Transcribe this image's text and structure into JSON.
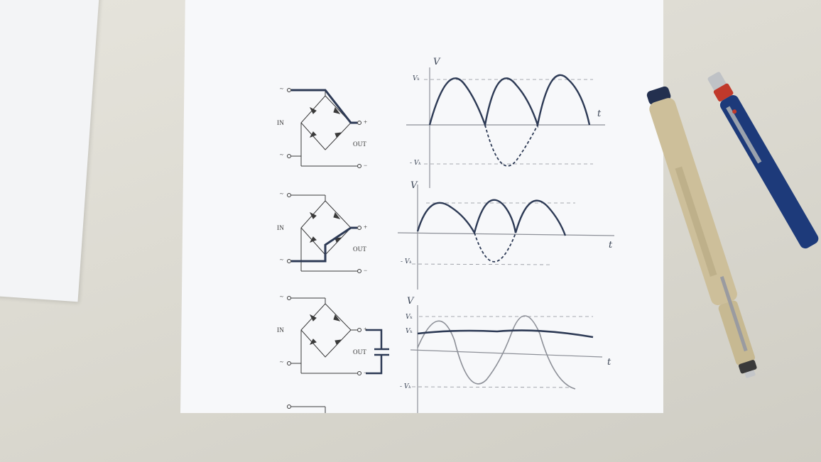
{
  "colors": {
    "paper": "#f7f8fa",
    "ink_circuit": "#3a3a3a",
    "ink_marker": "#2d3a55",
    "pencil": "#8d9098",
    "desk": "#dcdad2"
  },
  "circuits": [
    {
      "in_label": "IN",
      "out_label": "OUT",
      "terminal_ac_1": "~",
      "terminal_ac_2": "~",
      "terminal_plus": "+",
      "terminal_minus": "−"
    },
    {
      "in_label": "IN",
      "out_label": "OUT",
      "terminal_ac_1": "~",
      "terminal_ac_2": "~",
      "terminal_plus": "+",
      "terminal_minus": "−"
    },
    {
      "in_label": "IN",
      "out_label": "OUT",
      "terminal_ac_1": "~",
      "terminal_ac_2": "~",
      "terminal_plus": "+",
      "terminal_minus": "−"
    }
  ],
  "graphs": [
    {
      "y_axis_label": "V",
      "x_axis_label": "t",
      "peak_label": "Vₖ",
      "neg_peak_label": "- Vₖ"
    },
    {
      "y_axis_label": "V",
      "x_axis_label": "t",
      "neg_peak_label": "- Vₖ"
    },
    {
      "y_axis_label": "V",
      "x_axis_label": "t",
      "peak_label": "Vₖ",
      "ripple_label": "Vₖ",
      "neg_peak_label": "- Vₖ"
    }
  ],
  "objects": [
    {
      "name": "fineliner-pen",
      "body_color": "#cdbf9a",
      "cap_color": "#23304f"
    },
    {
      "name": "mechanical-pencil",
      "body_color": "#1d3a7a",
      "tip_color": "#c0392b"
    }
  ]
}
